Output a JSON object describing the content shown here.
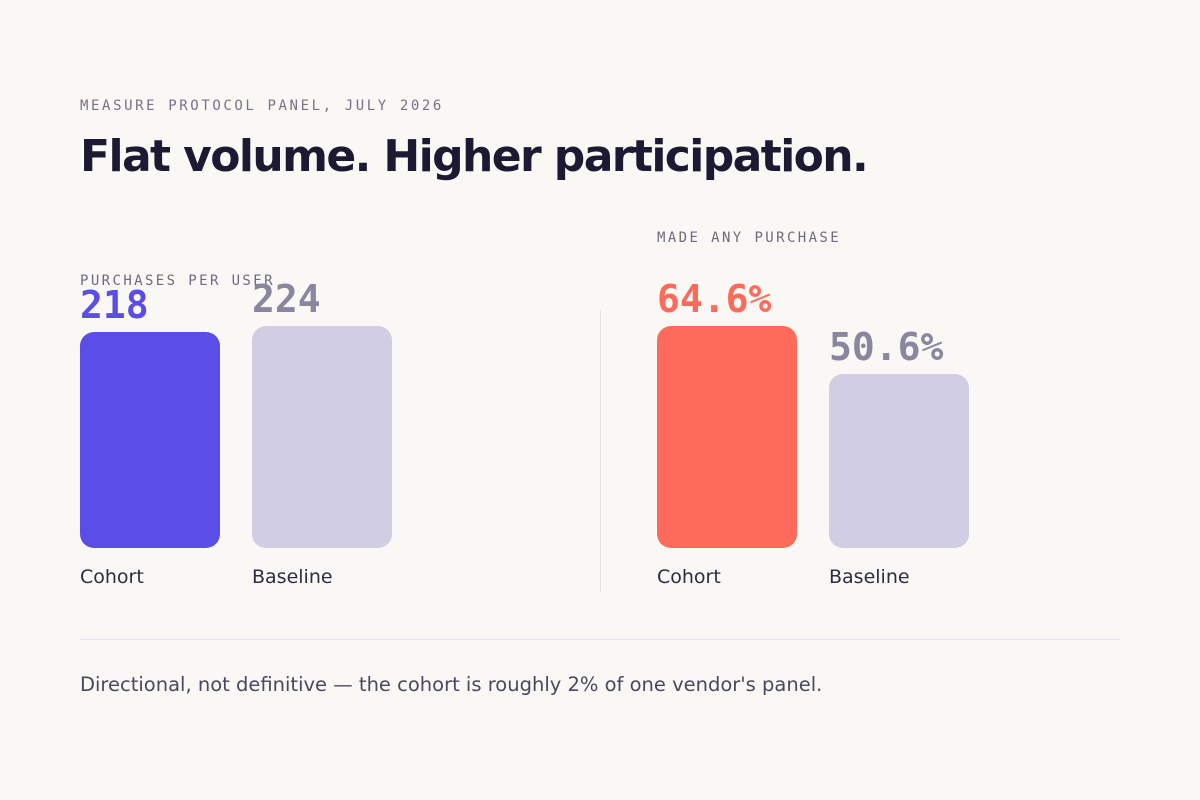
{
  "eyebrow": "MEASURE PROTOCOL PANEL, JULY 2026",
  "title": "Flat volume. Higher participation.",
  "footnote": "Directional, not definitive — the cohort is roughly 2% of one vendor's panel.",
  "colors": {
    "background": "#f9f8f4",
    "cohort_left": "#5b4de8",
    "cohort_right": "#ff6b5a",
    "baseline": "#d1cde3",
    "baseline_text": "#8a869f"
  },
  "chart_data": [
    {
      "type": "bar",
      "title": "PURCHASES PER USER",
      "categories": [
        "Cohort",
        "Baseline"
      ],
      "value_labels": [
        "218",
        "224"
      ],
      "values": [
        218,
        224
      ],
      "ylim": [
        0,
        224
      ],
      "grid": false
    },
    {
      "type": "bar",
      "title": "MADE ANY PURCHASE",
      "categories": [
        "Cohort",
        "Baseline"
      ],
      "value_labels": [
        "64.6%",
        "50.6%"
      ],
      "values": [
        64.6,
        50.6
      ],
      "ylim": [
        0,
        64.6
      ],
      "grid": false
    }
  ]
}
